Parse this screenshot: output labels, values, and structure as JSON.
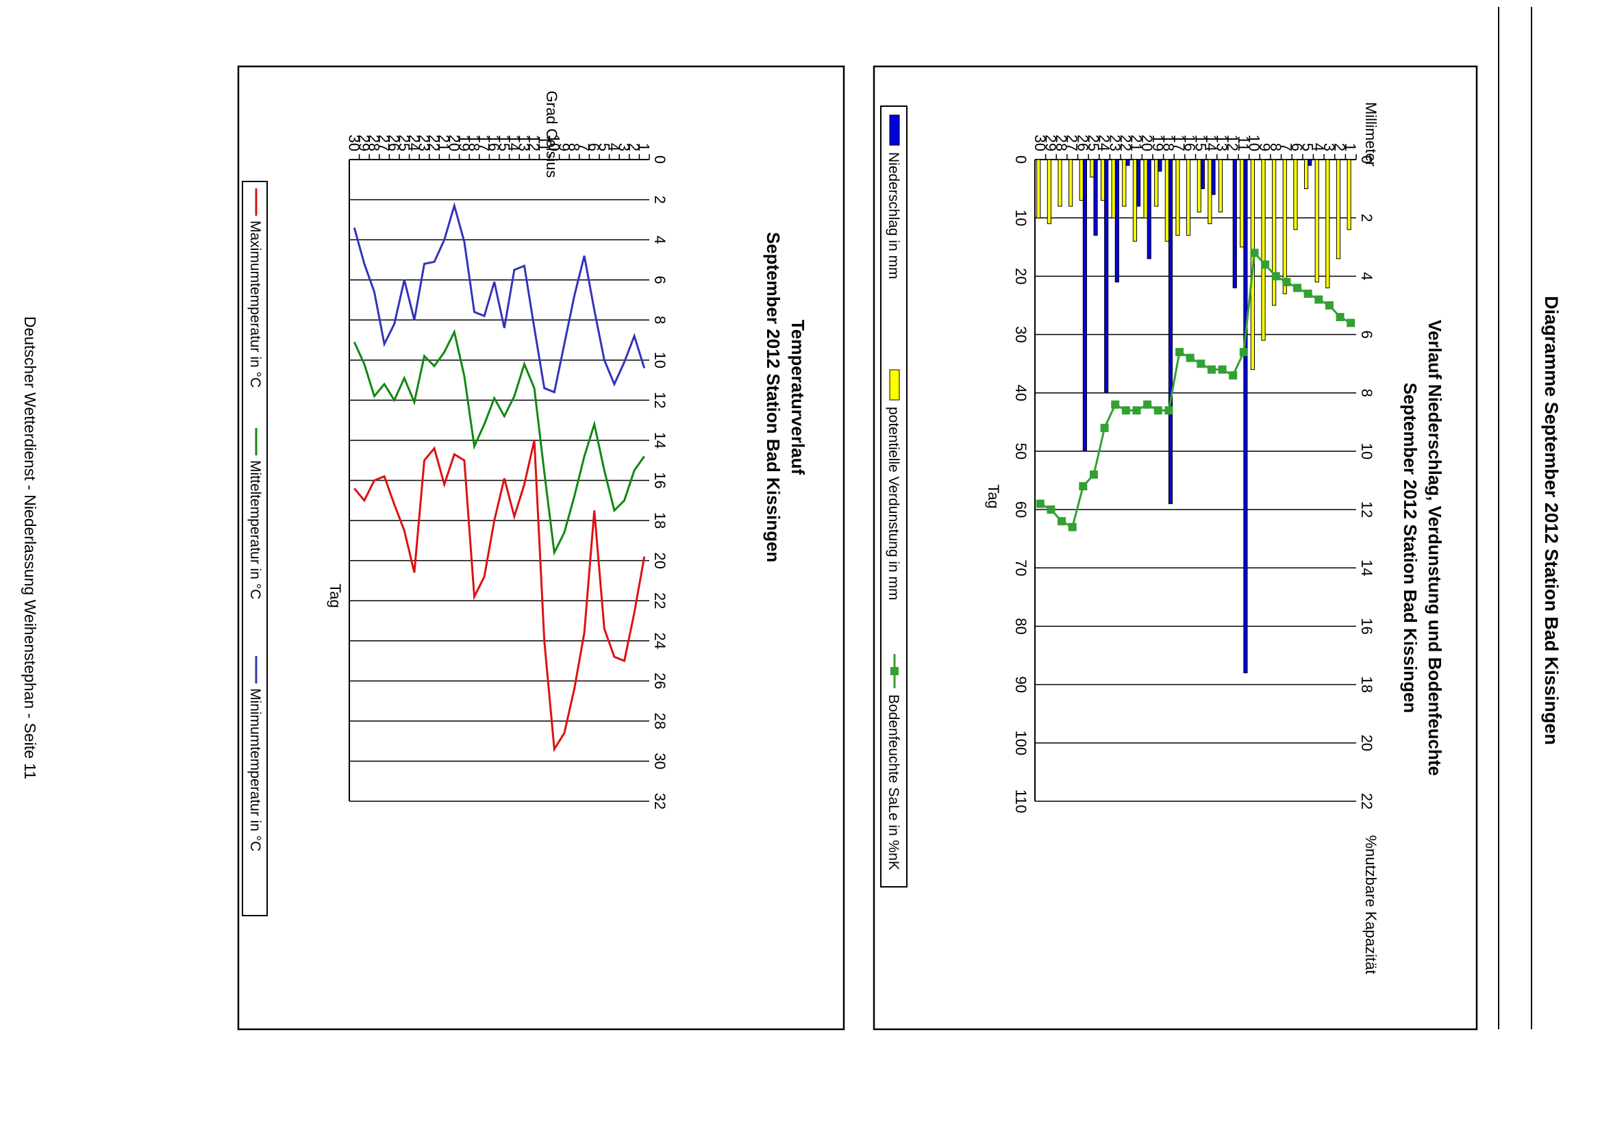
{
  "page": {
    "heading": "Diagramme September 2012 Station Bad Kissingen",
    "footer": "Deutscher Wetterdienst - Niederlassung Weihenstephan - Seite 11"
  },
  "colors": {
    "precip": "#0000dd",
    "evap": "#ffff00",
    "soil": "#33a033",
    "tmax": "#dd1111",
    "tmean": "#118811",
    "tmin": "#3333bb"
  },
  "chart_data": [
    {
      "type": "bar",
      "title_line1": "Verlauf Niederschlag, Verdunstung und Bodenfeuchte",
      "title_line2": "September 2012 Station Bad Kissingen",
      "xlabel": "Tag",
      "ylabel_left": "Millimeter",
      "ylabel_right": "%nutzbare Kapazität",
      "ylim_left": [
        0,
        22
      ],
      "ylim_right": [
        0,
        110
      ],
      "yticks_left": [
        "0",
        "2",
        "4",
        "6",
        "8",
        "10",
        "12",
        "14",
        "16",
        "18",
        "20",
        "22"
      ],
      "yticks_right": [
        "0",
        "10",
        "20",
        "30",
        "40",
        "50",
        "60",
        "70",
        "80",
        "90",
        "100",
        "110"
      ],
      "categories": [
        "1",
        "2",
        "3",
        "4",
        "5",
        "6",
        "7",
        "8",
        "9",
        "10",
        "11",
        "12",
        "13",
        "14",
        "15",
        "16",
        "17",
        "18",
        "19",
        "20",
        "21",
        "22",
        "23",
        "24",
        "25",
        "26",
        "27",
        "28",
        "29",
        "30"
      ],
      "series": [
        {
          "name": "Niederschlag in mm",
          "kind": "bar",
          "values": [
            0,
            0,
            0,
            0,
            0.2,
            0,
            0,
            0,
            0,
            0,
            17.6,
            4.4,
            0,
            1.2,
            1.0,
            0,
            0,
            11.8,
            0.4,
            3.4,
            1.6,
            0.2,
            4.2,
            8.0,
            2.6,
            10.0,
            0,
            0,
            0,
            0
          ]
        },
        {
          "name": "potentielle Verdunstung in mm",
          "kind": "bar",
          "values": [
            2.4,
            3.4,
            4.4,
            4.2,
            1.0,
            2.4,
            4.6,
            5.0,
            6.2,
            7.2,
            3.0,
            0,
            1.8,
            2.2,
            1.8,
            2.6,
            2.6,
            2.8,
            1.6,
            2.0,
            2.8,
            1.6,
            2.0,
            1.4,
            0.6,
            1.4,
            1.6,
            1.6,
            2.2,
            2.0
          ]
        },
        {
          "name": "Bodenfeuchte SaLe in %nK",
          "kind": "line",
          "axis": "right",
          "values": [
            28,
            27,
            25,
            24,
            23,
            22,
            21,
            20,
            18,
            16,
            33,
            37,
            36,
            36,
            35,
            34,
            33,
            43,
            43,
            42,
            43,
            43,
            42,
            46,
            54,
            56,
            63,
            62,
            60,
            59
          ]
        }
      ]
    },
    {
      "type": "line",
      "title_line1": "Temperaturverlauf",
      "title_line2": "September 2012 Station Bad Kissingen",
      "xlabel": "Tag",
      "ylabel": "Grad Celsius",
      "ylim": [
        0,
        32
      ],
      "yticks": [
        "0",
        "2",
        "4",
        "6",
        "8",
        "10",
        "12",
        "14",
        "16",
        "18",
        "20",
        "22",
        "24",
        "26",
        "28",
        "30",
        "32"
      ],
      "categories": [
        "1",
        "2",
        "3",
        "4",
        "5",
        "6",
        "7",
        "8",
        "9",
        "10",
        "11",
        "12",
        "13",
        "14",
        "15",
        "16",
        "17",
        "18",
        "19",
        "20",
        "21",
        "22",
        "23",
        "24",
        "25",
        "26",
        "27",
        "28",
        "29",
        "30"
      ],
      "series": [
        {
          "name": "Maximumtemperatur in °C",
          "values": [
            19.8,
            22.6,
            25.0,
            24.8,
            23.4,
            17.5,
            23.6,
            26.4,
            28.6,
            29.4,
            24.0,
            14.0,
            16.2,
            17.8,
            15.9,
            18.0,
            20.8,
            21.8,
            15.0,
            14.7,
            16.2,
            14.4,
            15.0,
            20.6,
            18.5,
            17.2,
            15.8,
            16.0,
            17.0,
            16.4
          ]
        },
        {
          "name": "Mitteltemperatur in °C",
          "values": [
            14.8,
            15.5,
            17.0,
            17.5,
            15.5,
            13.2,
            14.8,
            16.8,
            18.6,
            19.6,
            15.6,
            11.4,
            10.2,
            11.8,
            12.8,
            11.9,
            13.2,
            14.3,
            10.8,
            8.6,
            9.6,
            10.3,
            9.8,
            12.1,
            10.9,
            12.0,
            11.2,
            11.8,
            10.2,
            9.1
          ]
        },
        {
          "name": "Minimumtemperatur in °C",
          "values": [
            10.4,
            8.8,
            10.1,
            11.2,
            10.0,
            7.5,
            4.8,
            6.8,
            9.2,
            11.6,
            11.4,
            8.4,
            5.3,
            5.5,
            8.4,
            6.1,
            7.8,
            7.6,
            4.1,
            2.3,
            4.0,
            5.1,
            5.2,
            8.0,
            6.0,
            8.2,
            9.2,
            6.6,
            5.2,
            3.4
          ]
        }
      ]
    }
  ]
}
